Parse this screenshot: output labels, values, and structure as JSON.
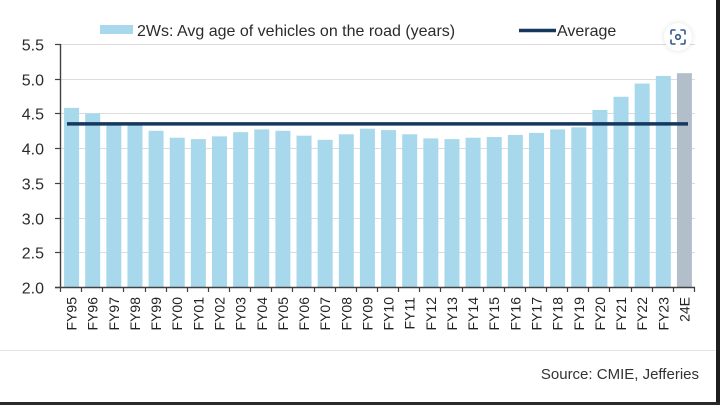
{
  "chart_data": {
    "type": "bar",
    "title": "",
    "xlabel": "",
    "ylabel": "",
    "ylim": [
      2.0,
      5.5
    ],
    "yticks": [
      "2.0",
      "2.5",
      "3.0",
      "3.5",
      "4.0",
      "4.5",
      "5.0",
      "5.5"
    ],
    "grid": true,
    "legend_position": "top",
    "categories": [
      "FY95",
      "FY96",
      "FY97",
      "FY98",
      "FY99",
      "FY00",
      "FY01",
      "FY02",
      "FY03",
      "FY04",
      "FY05",
      "FY06",
      "FY07",
      "FY08",
      "FY09",
      "FY10",
      "FY11",
      "FY12",
      "FY13",
      "FY14",
      "FY15",
      "FY16",
      "FY17",
      "FY18",
      "FY19",
      "FY20",
      "FY21",
      "FY22",
      "FY23",
      "24E"
    ],
    "series": [
      {
        "name": "2Ws: Avg age of vehicles on the road (years)",
        "type": "bar",
        "values": [
          4.58,
          4.5,
          4.36,
          4.34,
          4.25,
          4.15,
          4.13,
          4.17,
          4.23,
          4.27,
          4.25,
          4.18,
          4.12,
          4.2,
          4.28,
          4.26,
          4.2,
          4.14,
          4.13,
          4.15,
          4.16,
          4.19,
          4.22,
          4.27,
          4.3,
          4.55,
          4.74,
          4.93,
          5.04,
          5.08
        ],
        "forecast_categories": [
          "24E"
        ]
      },
      {
        "name": "Average",
        "type": "line",
        "value": 4.35
      }
    ],
    "legend": [
      {
        "label": "2Ws: Avg age of vehicles on the road (years)",
        "marker": "bar"
      },
      {
        "label": "Average",
        "marker": "line"
      }
    ],
    "colors": {
      "bar": "#a8d8ec",
      "forecast_bar": "#b2bfca",
      "average_line": "#16385f",
      "grid": "#dcdcdc",
      "axis": "#404040"
    }
  },
  "footer": {
    "source": "Source: CMIE, Jefferies"
  },
  "toolbar": {
    "lens_icon": "visual-search-icon"
  }
}
